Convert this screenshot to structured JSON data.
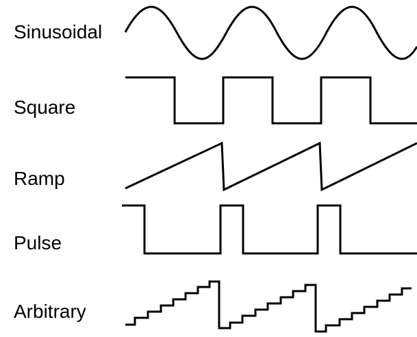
{
  "waveforms": [
    {
      "label": "Sinusoidal",
      "shape": "sine"
    },
    {
      "label": "Square",
      "shape": "square"
    },
    {
      "label": "Ramp",
      "shape": "ramp"
    },
    {
      "label": "Pulse",
      "shape": "pulse"
    },
    {
      "label": "Arbitrary",
      "shape": "staircase"
    }
  ],
  "colors": {
    "line": "#000000",
    "background": "#ffffff"
  }
}
